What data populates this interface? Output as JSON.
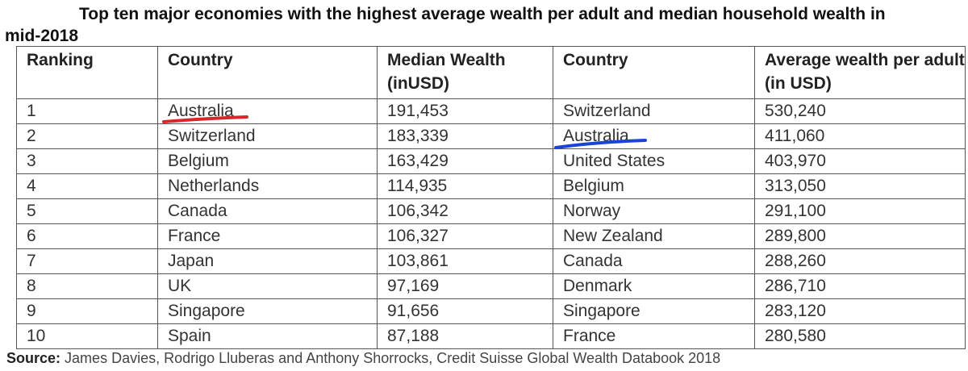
{
  "title": "Top ten major economies with the highest average wealth per adult and median household wealth in mid-2018",
  "table": {
    "headers": [
      "Ranking",
      "Country",
      "Median Wealth (inUSD)",
      "Country",
      "Average wealth per adult (in USD)"
    ],
    "rows": [
      [
        "1",
        "Australia",
        "191,453",
        "Switzerland",
        "530,240"
      ],
      [
        "2",
        "Switzerland",
        "183,339",
        "Australia",
        "411,060"
      ],
      [
        "3",
        "Belgium",
        "163,429",
        "United States",
        "403,970"
      ],
      [
        "4",
        "Netherlands",
        "114,935",
        "Belgium",
        "313,050"
      ],
      [
        "5",
        "Canada",
        "106,342",
        "Norway",
        "291,100"
      ],
      [
        "6",
        "France",
        "106,327",
        "New Zealand",
        "289,800"
      ],
      [
        "7",
        "Japan",
        "103,861",
        "Canada",
        "288,260"
      ],
      [
        "8",
        "UK",
        "97,169",
        "Denmark",
        "286,710"
      ],
      [
        "9",
        "Singapore",
        "91,656",
        "Singapore",
        "283,120"
      ],
      [
        "10",
        "Spain",
        "87,188",
        "France",
        "280,580"
      ]
    ]
  },
  "source": {
    "label": "Source:",
    "text": "James Davies, Rodrigo Lluberas and Anthony Shorrocks, Credit Suisse Global Wealth Databook 2018"
  }
}
